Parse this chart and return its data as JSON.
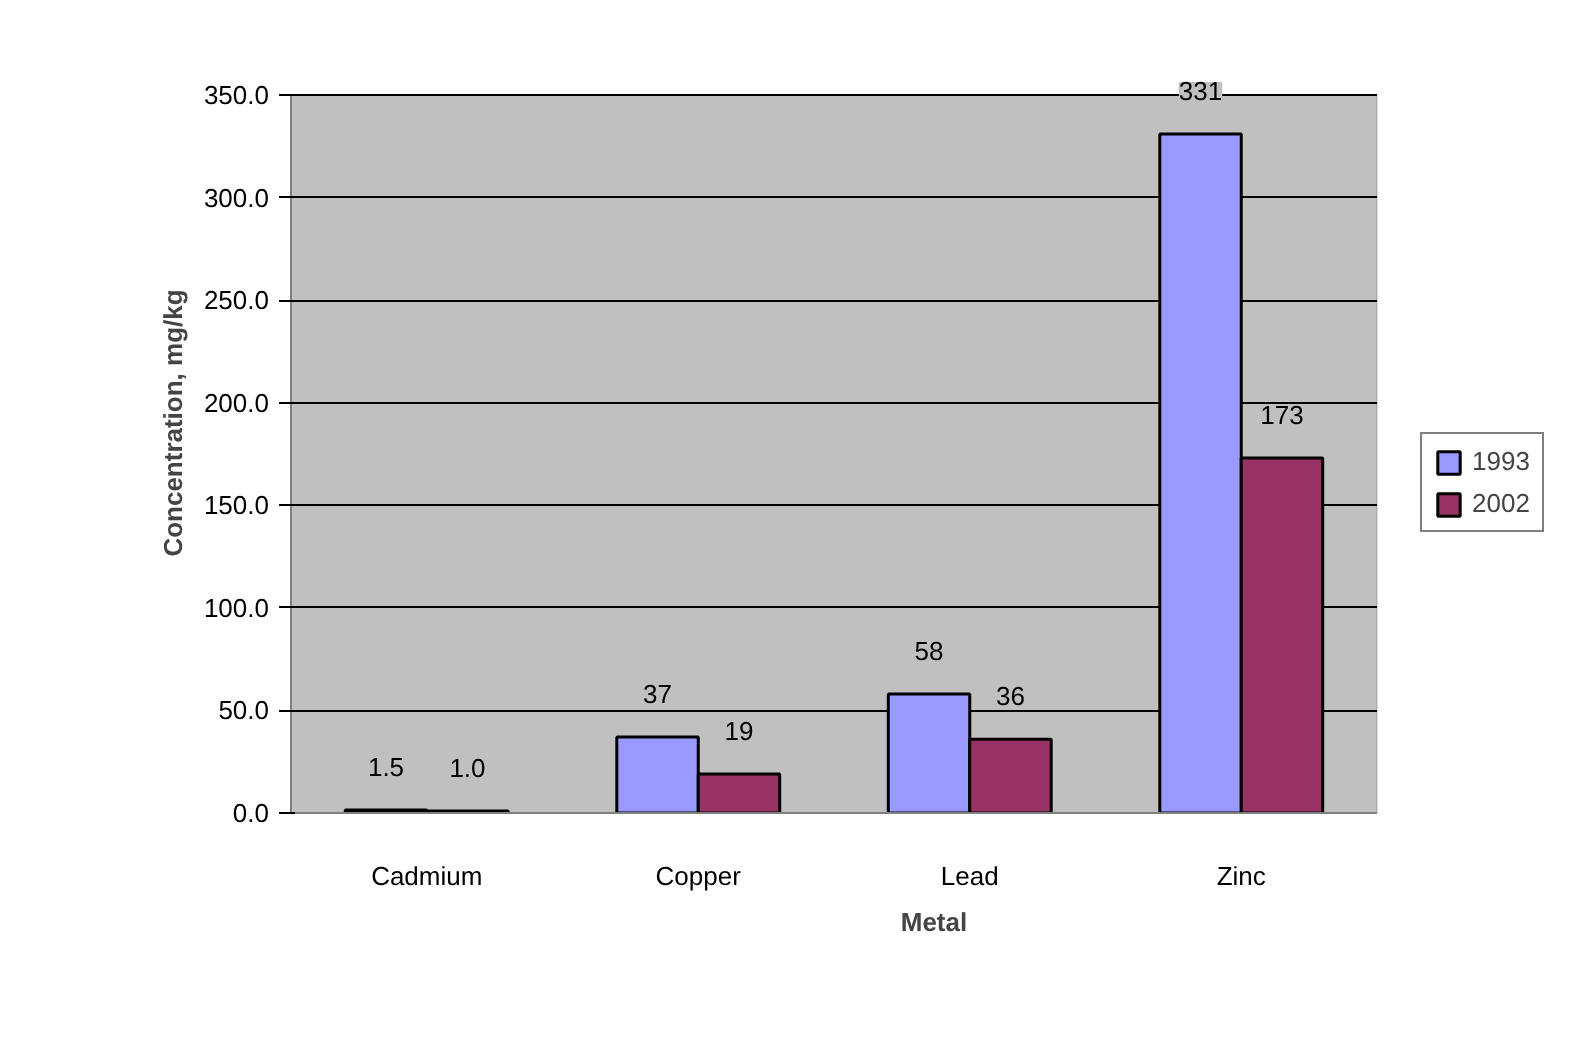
{
  "chart_data": {
    "type": "bar",
    "xlabel": "Metal",
    "ylabel": "Concentration, mg/kg",
    "categories": [
      "Cadmium",
      "Copper",
      "Lead",
      "Zinc"
    ],
    "series": [
      {
        "name": "1993",
        "color": "#9999ff",
        "values": [
          1.5,
          37,
          58,
          331
        ],
        "value_labels": [
          "1.5",
          "37",
          "58",
          "331"
        ]
      },
      {
        "name": "2002",
        "color": "#993366",
        "values": [
          1.0,
          19,
          36,
          173
        ],
        "value_labels": [
          "1.0",
          "19",
          "36",
          "173"
        ]
      }
    ],
    "ylim": [
      0,
      350
    ],
    "yticks": [
      {
        "value": 0,
        "label": "0.0"
      },
      {
        "value": 50,
        "label": "50.0"
      },
      {
        "value": 100,
        "label": "100.0"
      },
      {
        "value": 150,
        "label": "150.0"
      },
      {
        "value": 200,
        "label": "200.0"
      },
      {
        "value": 250,
        "label": "250.0"
      },
      {
        "value": 300,
        "label": "300.0"
      },
      {
        "value": 350,
        "label": "350.0"
      }
    ],
    "grid": "y",
    "legend": "right"
  }
}
